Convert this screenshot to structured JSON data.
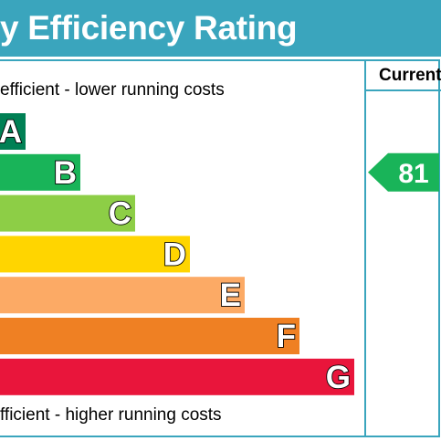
{
  "header": {
    "title": "y Efficiency Rating"
  },
  "columns": {
    "current": "Current"
  },
  "captions": {
    "top": "efficient - lower running costs",
    "bottom": "fficient - higher running costs"
  },
  "chart_data": {
    "type": "bar",
    "categories": [
      "A",
      "B",
      "C",
      "D",
      "E",
      "F",
      "G"
    ],
    "colors": [
      "#008054",
      "#19b459",
      "#8dce46",
      "#ffd500",
      "#fcaa65",
      "#ef8023",
      "#e9153b"
    ],
    "current": {
      "value": 81,
      "band": "B",
      "color": "#19b459"
    }
  }
}
